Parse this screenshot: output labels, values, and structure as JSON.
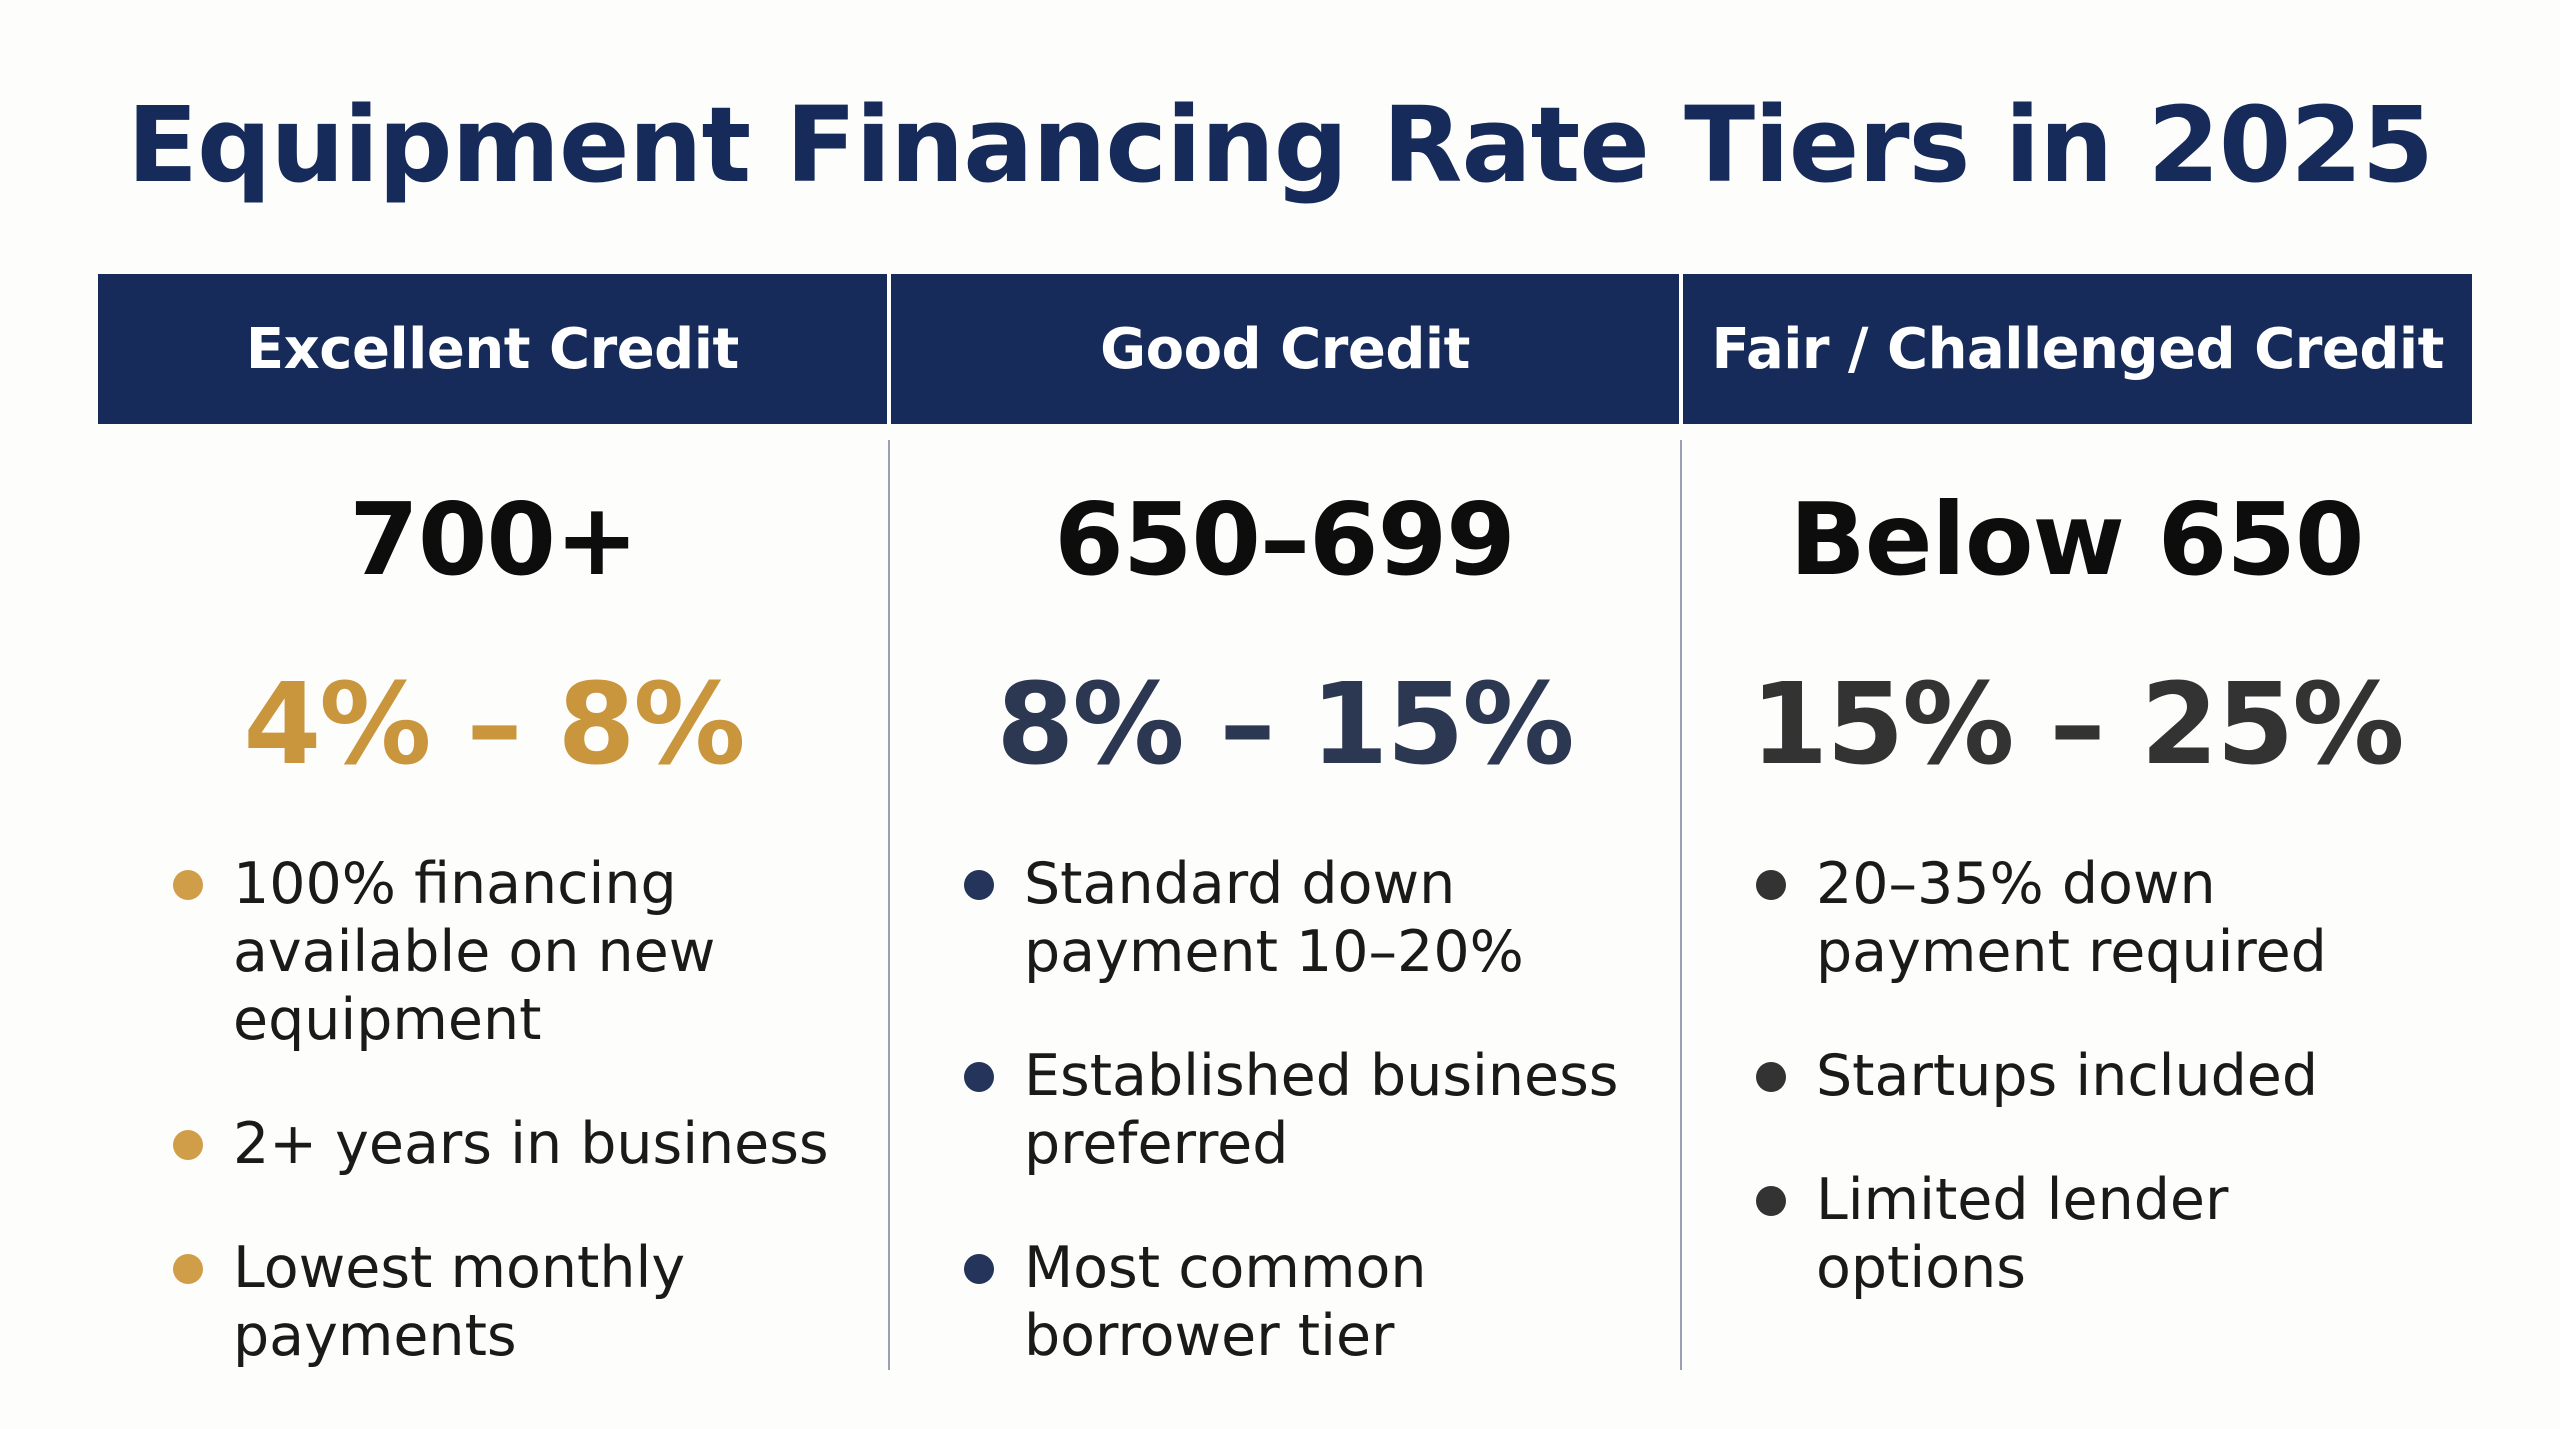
{
  "title": "Equipment Financing Rate Tiers in 2025",
  "colors": {
    "navy": "#172b5a",
    "gold": "#c9963e",
    "slate": "#2c3752",
    "charcoal": "#333333"
  },
  "tiers": [
    {
      "header": "Excellent Credit",
      "score": "700+",
      "rate": "4% – 8%",
      "rate_color": "#c9963e",
      "bullet_color": "#d09d48",
      "bullets": [
        "100% financing available on new equipment",
        "2+ years in business",
        "Lowest monthly payments"
      ]
    },
    {
      "header": "Good Credit",
      "score": "650–699",
      "rate": "8% – 15%",
      "rate_color": "#2c3752",
      "bullet_color": "#24345a",
      "bullets": [
        "Standard down payment 10–20%",
        "Established business preferred",
        "Most common borrower tier"
      ]
    },
    {
      "header": "Fair / Challenged Credit",
      "score": "Below 650",
      "rate": "15% – 25%",
      "rate_color": "#333333",
      "bullet_color": "#333333",
      "bullets": [
        "20–35% down payment required",
        "Startups included",
        "Limited lender options"
      ]
    }
  ]
}
